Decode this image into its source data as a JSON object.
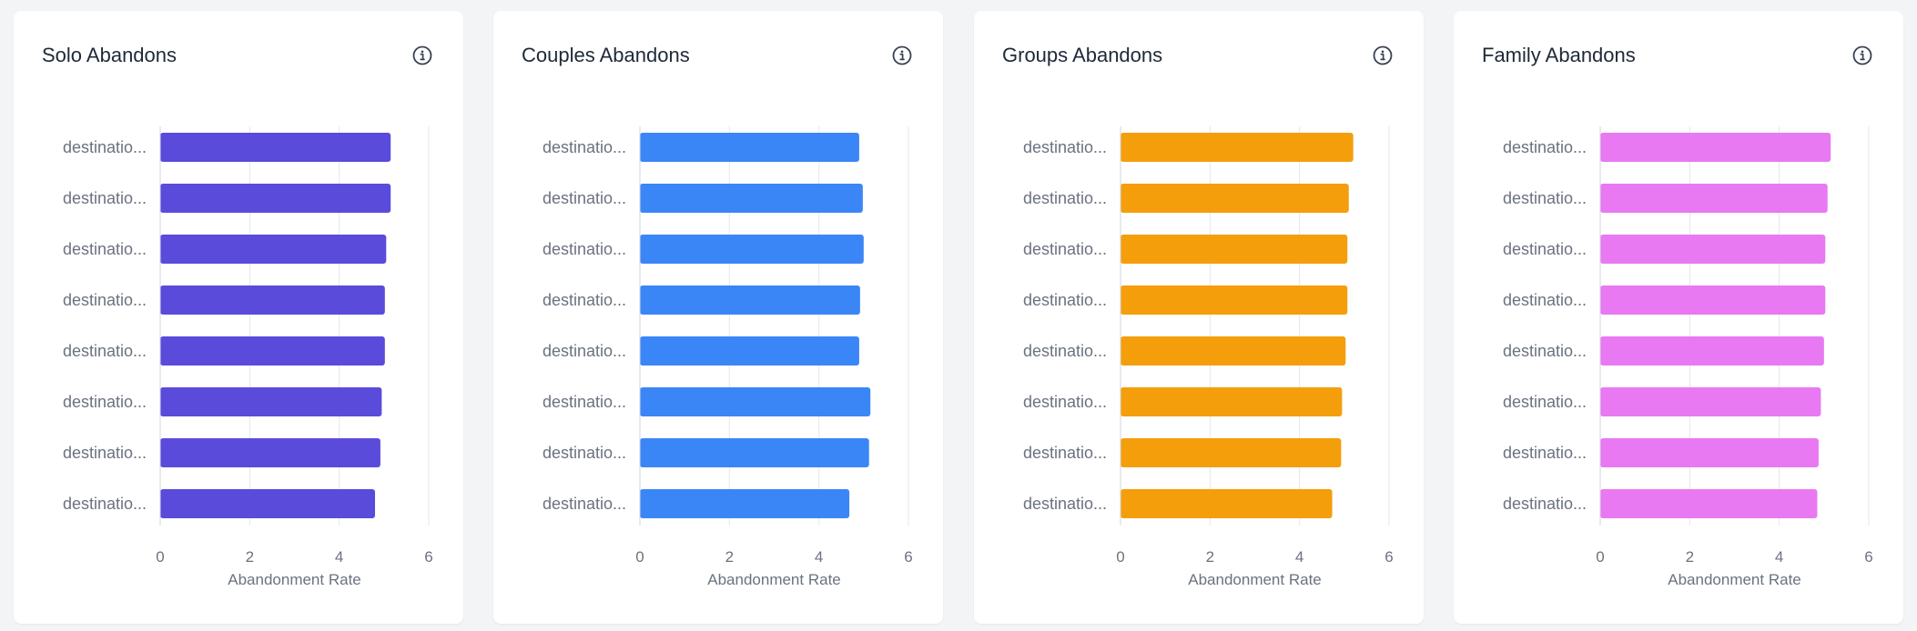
{
  "chart_data": [
    {
      "type": "bar",
      "orientation": "horizontal",
      "title": "Solo Abandons",
      "color": "#5a4bdb",
      "categories": [
        "destinatio...",
        "destinatio...",
        "destinatio...",
        "destinatio...",
        "destinatio...",
        "destinatio...",
        "destinatio...",
        "destinatio..."
      ],
      "values": [
        5.15,
        5.15,
        5.05,
        5.02,
        5.02,
        4.95,
        4.92,
        4.8
      ],
      "xlabel": "Abandonment Rate",
      "xticks": [
        0,
        2,
        4,
        6
      ],
      "xlim": [
        0,
        6
      ],
      "grid": true
    },
    {
      "type": "bar",
      "orientation": "horizontal",
      "title": "Couples Abandons",
      "color": "#3b86f7",
      "categories": [
        "destinatio...",
        "destinatio...",
        "destinatio...",
        "destinatio...",
        "destinatio...",
        "destinatio...",
        "destinatio...",
        "destinatio..."
      ],
      "values": [
        4.9,
        4.98,
        5.0,
        4.92,
        4.9,
        5.15,
        5.12,
        4.68
      ],
      "xlabel": "Abandonment Rate",
      "xticks": [
        0,
        2,
        4,
        6
      ],
      "xlim": [
        0,
        6
      ],
      "grid": true
    },
    {
      "type": "bar",
      "orientation": "horizontal",
      "title": "Groups Abandons",
      "color": "#f49e0c",
      "categories": [
        "destinatio...",
        "destinatio...",
        "destinatio...",
        "destinatio...",
        "destinatio...",
        "destinatio...",
        "destinatio...",
        "destinatio..."
      ],
      "values": [
        5.2,
        5.1,
        5.07,
        5.07,
        5.03,
        4.95,
        4.93,
        4.73
      ],
      "xlabel": "Abandonment Rate",
      "xticks": [
        0,
        2,
        4,
        6
      ],
      "xlim": [
        0,
        6
      ],
      "grid": true
    },
    {
      "type": "bar",
      "orientation": "horizontal",
      "title": "Family Abandons",
      "color": "#e879f2",
      "categories": [
        "destinatio...",
        "destinatio...",
        "destinatio...",
        "destinatio...",
        "destinatio...",
        "destinatio...",
        "destinatio...",
        "destinatio..."
      ],
      "values": [
        5.15,
        5.08,
        5.03,
        5.03,
        5.0,
        4.93,
        4.88,
        4.85
      ],
      "xlabel": "Abandonment Rate",
      "xticks": [
        0,
        2,
        4,
        6
      ],
      "xlim": [
        0,
        6
      ],
      "grid": true
    }
  ],
  "icons": {
    "info": "info-icon"
  }
}
